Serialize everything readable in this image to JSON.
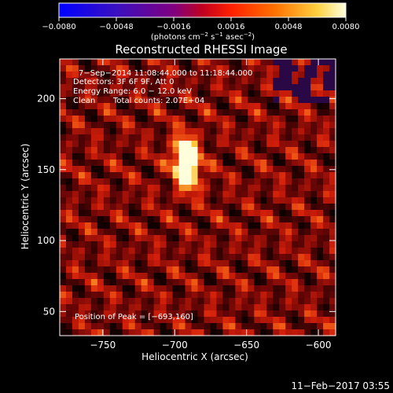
{
  "chart_data": {
    "type": "heatmap",
    "title": "Reconstructed RHESSI Image",
    "xlabel": "Heliocentric X (arcsec)",
    "ylabel": "Heliocentric Y (arcsec)",
    "xlim": [
      -780,
      -588
    ],
    "ylim": [
      33,
      228
    ],
    "x_ticks": [
      -750,
      -700,
      -650,
      -600
    ],
    "y_ticks": [
      50,
      100,
      150,
      200
    ],
    "x_tick_labels": [
      "−750",
      "−700",
      "−650",
      "−600"
    ],
    "y_tick_labels": [
      "50",
      "100",
      "150",
      "200"
    ],
    "colorbar": {
      "range": [
        -0.008,
        0.008
      ],
      "ticks": [
        -0.008,
        -0.0048,
        -0.0016,
        0.0016,
        0.0048,
        0.008
      ],
      "tick_labels": [
        "−0.0080",
        "−0.0048",
        "−0.0016",
        "0.0016",
        "0.0048",
        "0.0080"
      ],
      "unit_main": "(photons cm",
      "unit_exp1": "−2",
      "unit_mid": " s",
      "unit_exp2": "−1",
      "unit_mid2": " asec",
      "unit_exp3": "−2",
      "unit_end": ")"
    },
    "annotations": [
      "7−Sep−2014 11:08:44.000 to 11:18:44.000",
      "Detectors: 3F 6F 9F, Att 0",
      "Energy Range: 6.0 − 12.0 keV",
      "Clean",
      "Total counts: 2.07E+04"
    ],
    "peak_label": "Position of Peak = [−693,160]",
    "peak": {
      "x": -693,
      "y": 160,
      "value": 0.008
    },
    "sources": [
      {
        "x": -693,
        "y": 160,
        "value": 0.0075
      },
      {
        "x": -690,
        "y": 148,
        "value": 0.0065
      }
    ],
    "timestamp": "11−Feb−2017 03:55"
  }
}
